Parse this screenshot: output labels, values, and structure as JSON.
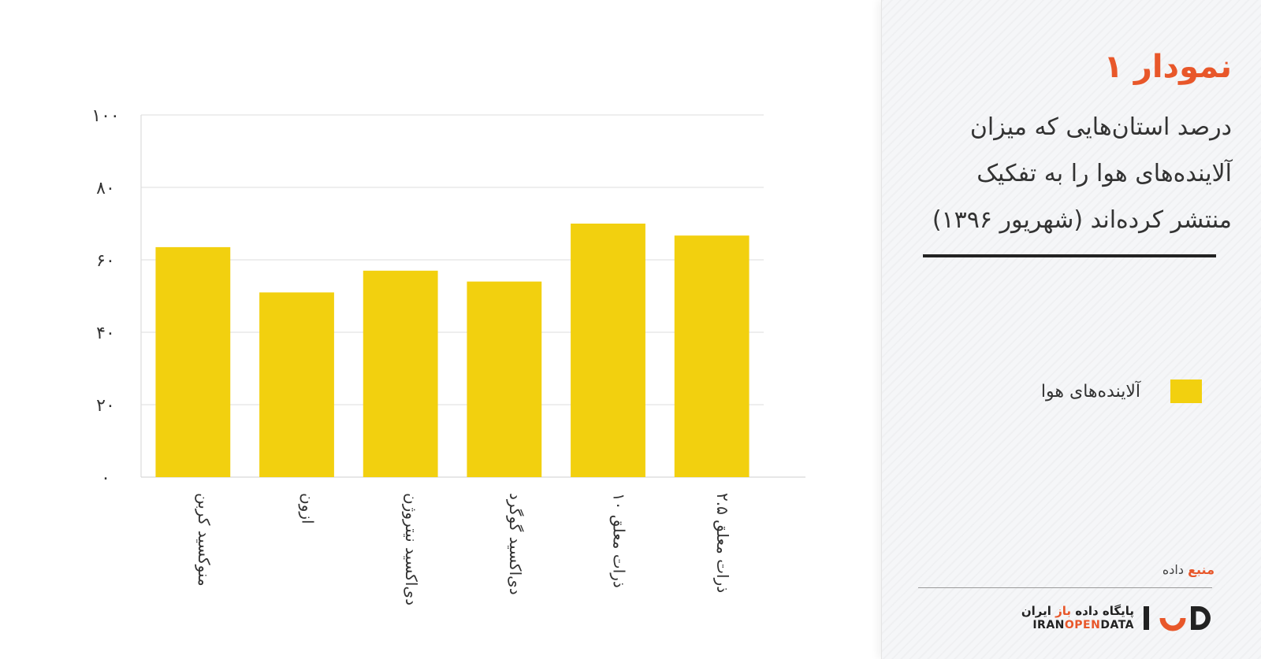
{
  "chart_data": {
    "type": "bar",
    "categories": [
      "منوکسید کربن",
      "ازون",
      "دی‌اکسید نیتروژن",
      "دی‌اکسید گوگرد",
      "ذرات معلق ۱۰",
      "ذرات معلق ۲.۵"
    ],
    "series": [
      {
        "name": "آلاینده‌های هوا",
        "values": [
          63.5,
          51,
          57,
          54,
          70,
          66.7
        ]
      }
    ],
    "ylim": [
      0,
      100
    ],
    "yticks": [
      0,
      20,
      40,
      60,
      80,
      100
    ],
    "ytick_labels": [
      "۰",
      "۲۰",
      "۴۰",
      "۶۰",
      "۸۰",
      "۱۰۰"
    ],
    "grid": true,
    "legend": "right-panel",
    "bar_color": "#f2d00f"
  },
  "panel": {
    "title": "نمودار ۱",
    "subtitle": "درصد استان‌هایی که میزان آلاینده‌های هوا را به تفکیک منتشر کرده‌اند (شهریور ۱۳۹۶)",
    "legend_label": "آلاینده‌های هوا",
    "source_prefix": "منبع",
    "source_suffix": "داده",
    "brand_fa_pre": "پایگاه داده",
    "brand_fa_accent": "باز",
    "brand_fa_post": "ایران",
    "brand_en_pre": "IRAN",
    "brand_en_accent": "OPEN",
    "brand_en_post": "DATA",
    "brand_logo": "iod-logo-icon",
    "accent_color": "#e8572a"
  }
}
